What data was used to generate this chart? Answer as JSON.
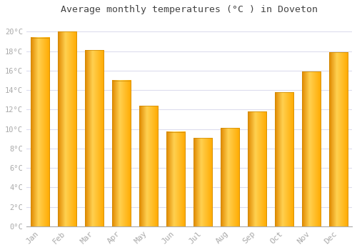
{
  "title": "Average monthly temperatures (°C ) in Doveton",
  "months": [
    "Jan",
    "Feb",
    "Mar",
    "Apr",
    "May",
    "Jun",
    "Jul",
    "Aug",
    "Sep",
    "Oct",
    "Nov",
    "Dec"
  ],
  "values": [
    19.4,
    20.0,
    18.1,
    15.0,
    12.4,
    9.7,
    9.1,
    10.1,
    11.8,
    13.8,
    15.9,
    17.9
  ],
  "bar_color_main": "#FFAA00",
  "bar_color_light": "#FFD050",
  "bar_color_dark": "#E08800",
  "background_color": "#FFFFFF",
  "plot_bg_color": "#FFFFFF",
  "grid_color": "#DDDDEE",
  "tick_color": "#AAAAAA",
  "title_color": "#444444",
  "ylim": [
    0,
    21
  ],
  "yticks": [
    0,
    2,
    4,
    6,
    8,
    10,
    12,
    14,
    16,
    18,
    20
  ],
  "ylabel_suffix": "°C"
}
